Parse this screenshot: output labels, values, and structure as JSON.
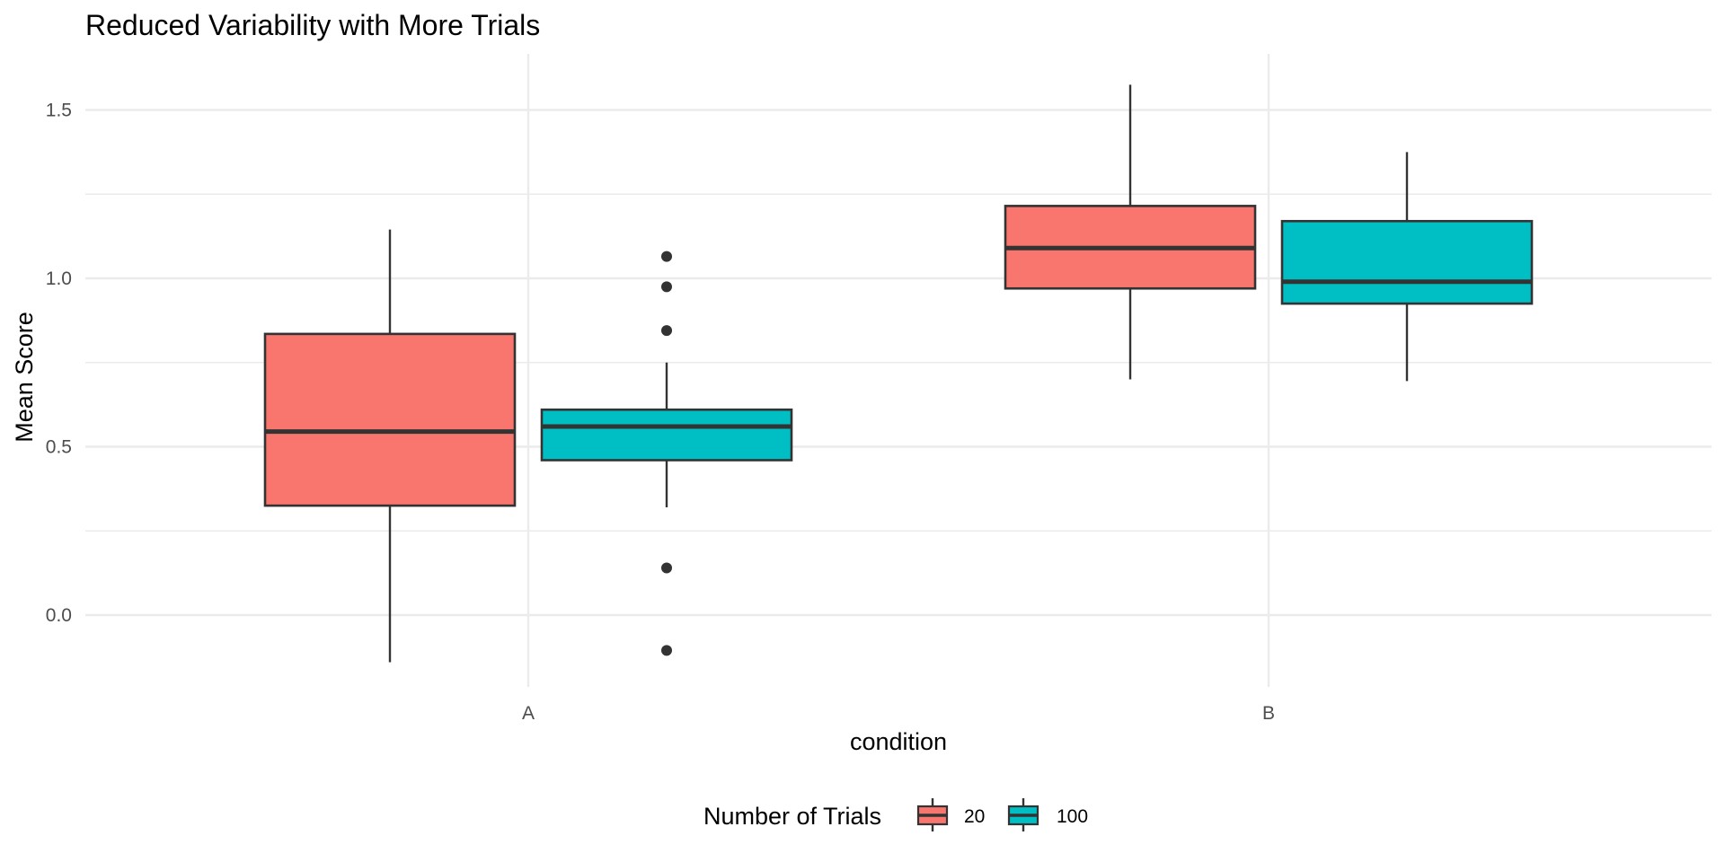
{
  "chart_data": {
    "type": "boxplot",
    "title": "Reduced Variability with More Trials",
    "xlabel": "condition",
    "ylabel": "Mean Score",
    "categories": [
      "A",
      "B"
    ],
    "ylim": [
      -0.22,
      1.67
    ],
    "yticks": [
      0.0,
      0.5,
      1.0,
      1.5
    ],
    "yticks_labels": [
      "0.0",
      "0.5",
      "1.0",
      "1.5"
    ],
    "grid": true,
    "legend": {
      "title": "Number of Trials",
      "position": "bottom"
    },
    "series": [
      {
        "name": "20",
        "color": "#f8766d",
        "boxes": [
          {
            "category": "A",
            "lower_whisker": -0.14,
            "q1": 0.325,
            "median": 0.545,
            "q3": 0.835,
            "upper_whisker": 1.145,
            "outliers": []
          },
          {
            "category": "B",
            "lower_whisker": 0.7,
            "q1": 0.97,
            "median": 1.09,
            "q3": 1.215,
            "upper_whisker": 1.575,
            "outliers": []
          }
        ]
      },
      {
        "name": "100",
        "color": "#00bfc4",
        "boxes": [
          {
            "category": "A",
            "lower_whisker": 0.32,
            "q1": 0.46,
            "median": 0.56,
            "q3": 0.61,
            "upper_whisker": 0.75,
            "outliers": [
              1.065,
              0.975,
              0.845,
              0.14,
              -0.105
            ]
          },
          {
            "category": "B",
            "lower_whisker": 0.695,
            "q1": 0.925,
            "median": 0.99,
            "q3": 1.17,
            "upper_whisker": 1.375,
            "outliers": []
          }
        ]
      }
    ]
  }
}
